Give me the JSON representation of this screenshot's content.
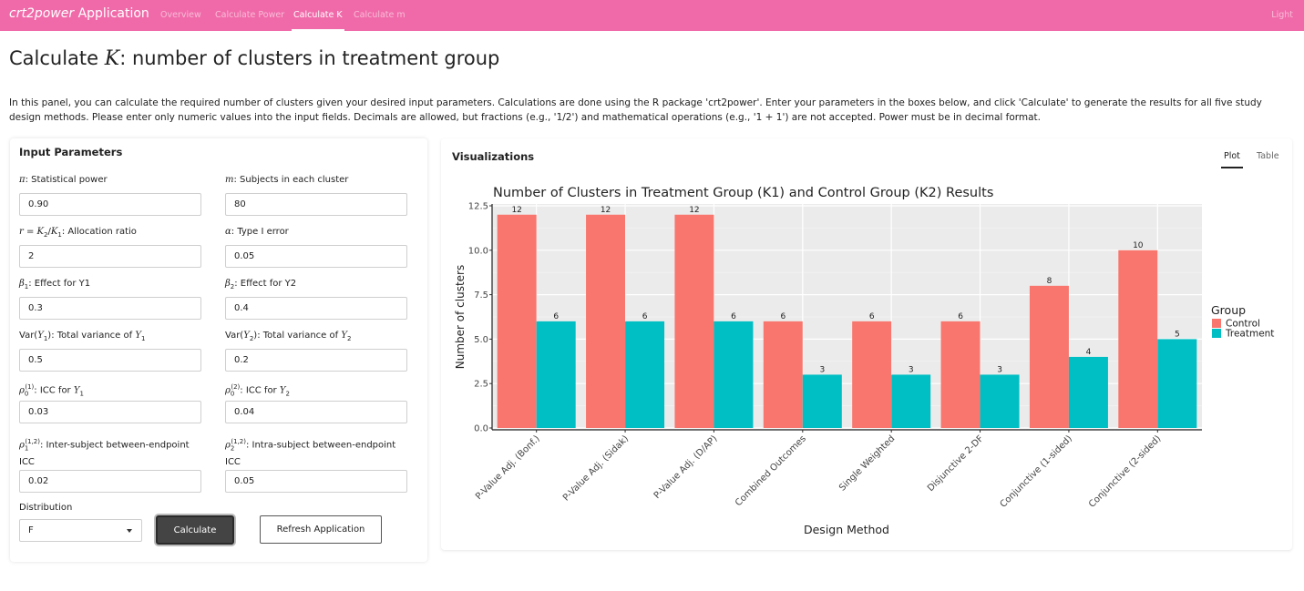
{
  "navbar": {
    "brand_pkg": "crt2power",
    "brand_suffix": " Application",
    "tabs": [
      {
        "label": "Overview"
      },
      {
        "label": "Calculate Power"
      },
      {
        "label": "Calculate K"
      },
      {
        "label": "Calculate m"
      }
    ],
    "right_label": "Light"
  },
  "header": {
    "title_prefix": "Calculate ",
    "title_symbol": "K",
    "title_suffix": ": number of clusters in treatment group",
    "intro": "In this panel, you can calculate the required number of clusters given your desired input parameters. Calculations are done using the R package 'crt2power'. Enter your parameters in the boxes below, and click 'Calculate' to generate the results for all five study design methods. Please enter only numeric values into the input fields. Decimals are allowed, but fractions (e.g., '1/2') and mathematical operations (e.g., '1 + 1') are not accepted. Power must be in decimal format."
  },
  "inputs": {
    "title": "Input Parameters",
    "power": {
      "label": ": Statistical power",
      "value": "0.90"
    },
    "m": {
      "label": ": Subjects in each cluster",
      "value": "80"
    },
    "r": {
      "label": ": Allocation ratio",
      "value": "2"
    },
    "alpha": {
      "label": ": Type I error",
      "value": "0.05"
    },
    "beta1": {
      "label": ": Effect for Y1",
      "value": "0.3"
    },
    "beta2": {
      "label": ": Effect for Y2",
      "value": "0.4"
    },
    "var1": {
      "label_a": "Var(",
      "label_b": "): Total variance of ",
      "value": "0.5"
    },
    "var2": {
      "label_a": "Var(",
      "label_b": "): Total variance of ",
      "value": "0.2"
    },
    "icc1": {
      "label": ": ICC for ",
      "value": "0.03"
    },
    "icc2": {
      "label": ": ICC for ",
      "value": "0.04"
    },
    "inter": {
      "label": ": Inter-subject between-endpoint ICC",
      "value": "0.02"
    },
    "intra": {
      "label": ": Intra-subject between-endpoint ICC",
      "value": "0.05"
    },
    "distribution": {
      "label": "Distribution",
      "value": "F"
    },
    "calculate_label": "Calculate",
    "refresh_label": "Refresh Application"
  },
  "viz": {
    "title": "Visualizations",
    "tabs": [
      {
        "label": "Plot"
      },
      {
        "label": "Table"
      }
    ]
  },
  "colors": {
    "navbar": "#f06aa9",
    "control": "#f8766d",
    "treatment": "#00bfc4",
    "panel": "#ebebeb"
  },
  "chart_data": {
    "type": "bar",
    "title": "Number of Clusters in Treatment Group (K1) and Control Group (K2) Results",
    "xlabel": "Design Method",
    "ylabel": "Number of clusters",
    "ylim": [
      0,
      12.5
    ],
    "yticks": [
      "0.0",
      "2.5",
      "5.0",
      "7.5",
      "10.0",
      "12.5"
    ],
    "ytick_values": [
      0,
      2.5,
      5,
      7.5,
      10,
      12.5
    ],
    "grid": true,
    "legend_title": "Group",
    "legend_position": "right",
    "categories": [
      "P-Value Adj. (Bonf.)",
      "P-Value Adj. (Sidak)",
      "P-Value Adj. (D/AP)",
      "Combined Outcomes",
      "Single Weighted",
      "Disjunctive 2-DF",
      "Conjunctive (1-sided)",
      "Conjunctive (2-sided)"
    ],
    "series": [
      {
        "name": "Control",
        "values": [
          12,
          12,
          12,
          6,
          6,
          6,
          8,
          10
        ]
      },
      {
        "name": "Treatment",
        "values": [
          6,
          6,
          6,
          3,
          3,
          3,
          4,
          5
        ]
      }
    ]
  }
}
